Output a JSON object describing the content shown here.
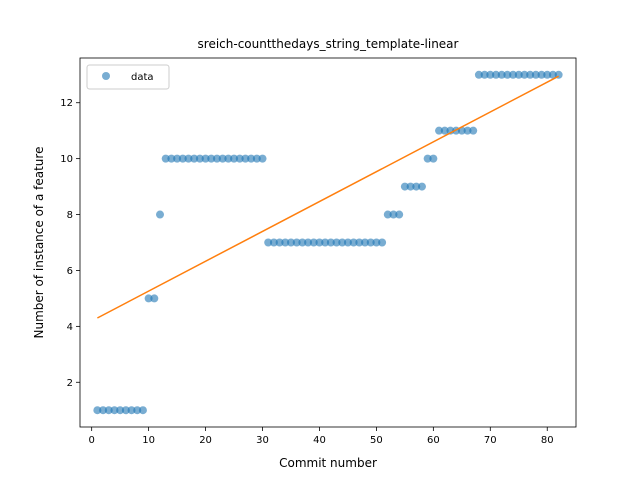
{
  "chart_data": {
    "type": "scatter",
    "title": "sreich-countthedays_string_template-linear",
    "xlabel": "Commit number",
    "ylabel": "Number of instance of a feature",
    "xlim": [
      -2.05,
      85.05
    ],
    "ylim": [
      0.4,
      13.6
    ],
    "xticks": [
      0,
      10,
      20,
      30,
      40,
      50,
      60,
      70,
      80
    ],
    "yticks": [
      2,
      4,
      6,
      8,
      10,
      12
    ],
    "grid": false,
    "legend": {
      "location": "upper left",
      "entries": [
        "data"
      ]
    },
    "series": [
      {
        "name": "data",
        "kind": "scatter",
        "color": "#1f77b4",
        "x": [
          1,
          2,
          3,
          4,
          5,
          6,
          7,
          8,
          9,
          10,
          11,
          12,
          13,
          14,
          15,
          16,
          17,
          18,
          19,
          20,
          21,
          22,
          23,
          24,
          25,
          26,
          27,
          28,
          29,
          30,
          31,
          32,
          33,
          34,
          35,
          36,
          37,
          38,
          39,
          40,
          41,
          42,
          43,
          44,
          45,
          46,
          47,
          48,
          49,
          50,
          51,
          52,
          53,
          54,
          55,
          56,
          57,
          58,
          59,
          60,
          61,
          62,
          63,
          64,
          65,
          66,
          67,
          68,
          69,
          70,
          71,
          72,
          73,
          74,
          75,
          76,
          77,
          78,
          79,
          80,
          81,
          82
        ],
        "y": [
          1,
          1,
          1,
          1,
          1,
          1,
          1,
          1,
          1,
          5,
          5,
          8,
          10,
          10,
          10,
          10,
          10,
          10,
          10,
          10,
          10,
          10,
          10,
          10,
          10,
          10,
          10,
          10,
          10,
          10,
          7,
          7,
          7,
          7,
          7,
          7,
          7,
          7,
          7,
          7,
          7,
          7,
          7,
          7,
          7,
          7,
          7,
          7,
          7,
          7,
          7,
          8,
          8,
          8,
          9,
          9,
          9,
          9,
          10,
          10,
          11,
          11,
          11,
          11,
          11,
          11,
          11,
          13,
          13,
          13,
          13,
          13,
          13,
          13,
          13,
          13,
          13,
          13,
          13,
          13,
          13,
          13
        ]
      },
      {
        "kind": "line",
        "color": "#ff7f0e",
        "x": [
          1,
          82
        ],
        "y": [
          4.3,
          12.95
        ]
      }
    ]
  }
}
